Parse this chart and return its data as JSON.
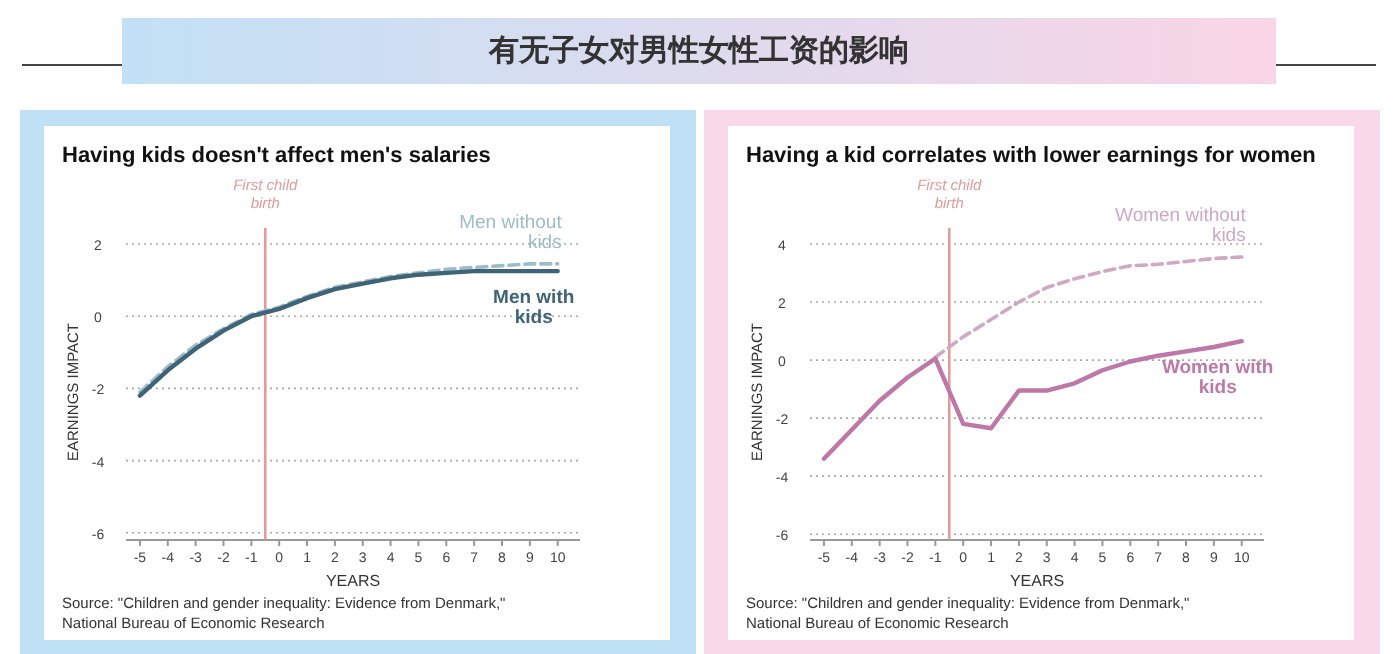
{
  "chart_data": [
    {
      "type": "other",
      "title": "有无子女对男性女性工资的影响"
    },
    {
      "type": "line",
      "title": "Having kids doesn't affect men's salaries",
      "xlabel": "YEARS",
      "ylabel": "EARNINGS IMPACT",
      "x": [
        -5,
        -4,
        -3,
        -2,
        -1,
        0,
        1,
        2,
        3,
        4,
        5,
        6,
        7,
        8,
        9,
        10
      ],
      "series": [
        {
          "name": "Men without kids",
          "color": "#9dbcc8",
          "line_style": "dashed",
          "values": [
            -2.1,
            -1.4,
            -0.8,
            -0.35,
            0.05,
            0.25,
            0.55,
            0.8,
            0.95,
            1.1,
            1.2,
            1.3,
            1.35,
            1.4,
            1.45,
            1.45
          ]
        },
        {
          "name": "Men with kids",
          "color": "#3f6478",
          "line_style": "solid",
          "values": [
            -2.2,
            -1.5,
            -0.9,
            -0.4,
            0,
            0.2,
            0.5,
            0.75,
            0.9,
            1.05,
            1.15,
            1.2,
            1.25,
            1.25,
            1.25,
            1.25
          ]
        }
      ],
      "xlim": [
        -5.5,
        10.8
      ],
      "ylim": [
        -6.2,
        2
      ],
      "xticks": [
        -5,
        -4,
        -3,
        -2,
        -1,
        0,
        1,
        2,
        3,
        4,
        5,
        6,
        7,
        8,
        9,
        10
      ],
      "yticks": [
        -6,
        -4,
        -2,
        0,
        2
      ],
      "grid": "y",
      "ref_lines": [
        {
          "axis": "x",
          "value": -0.5,
          "label": "First child birth",
          "color": "#e39a9a"
        }
      ],
      "annotations": [
        "Source: \"Children and gender inequality: Evidence from Denmark,\" National Bureau of Economic Research"
      ]
    },
    {
      "type": "line",
      "title": "Having a kid correlates with lower earnings for women",
      "xlabel": "YEARS",
      "ylabel": "EARNINGS IMPACT",
      "x": [
        -5,
        -4,
        -3,
        -2,
        -1,
        0,
        1,
        2,
        3,
        4,
        5,
        6,
        7,
        8,
        9,
        10
      ],
      "series": [
        {
          "name": "Women without kids",
          "color": "#cfa9c4",
          "line_style": "dashed",
          "x": [
            -1,
            0,
            1,
            2,
            3,
            4,
            5,
            6,
            7,
            8,
            9,
            10
          ],
          "values": [
            0.1,
            0.8,
            1.4,
            2.0,
            2.5,
            2.8,
            3.05,
            3.25,
            3.3,
            3.4,
            3.5,
            3.55
          ]
        },
        {
          "name": "Women with kids",
          "color": "#bd78a8",
          "line_style": "solid",
          "values": [
            -3.4,
            -2.4,
            -1.4,
            -0.6,
            0.05,
            -2.2,
            -2.35,
            -1.05,
            -1.05,
            -0.8,
            -0.35,
            -0.05,
            0.15,
            0.3,
            0.45,
            0.65
          ]
        }
      ],
      "xlim": [
        -5.5,
        10.8
      ],
      "ylim": [
        -6.2,
        4
      ],
      "xticks": [
        -5,
        -4,
        -3,
        -2,
        -1,
        0,
        1,
        2,
        3,
        4,
        5,
        6,
        7,
        8,
        9,
        10
      ],
      "yticks": [
        -6,
        -4,
        -2,
        0,
        2,
        4
      ],
      "grid": "y",
      "ref_lines": [
        {
          "axis": "x",
          "value": -0.5,
          "label": "First child birth",
          "color": "#e39a9a"
        }
      ],
      "annotations": [
        "Source: \"Children and gender inequality: Evidence from Denmark,\" National Bureau of Economic Research"
      ]
    }
  ]
}
